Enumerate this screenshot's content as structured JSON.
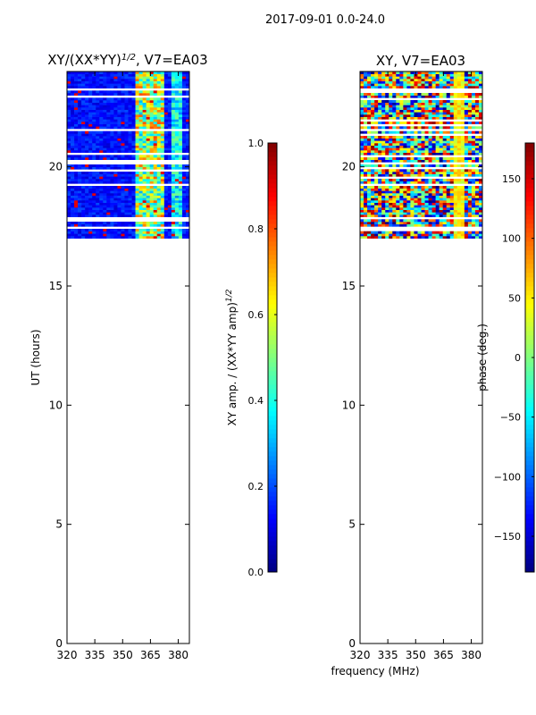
{
  "figure": {
    "suptitle": "2017-09-01 0.0-24.0",
    "shared_xlabel": "frequency (MHz)"
  },
  "chart_data": [
    {
      "type": "heatmap",
      "title": "XY/(XX*YY)",
      "title_exponent": "1/2",
      "title_suffix": ", V7=EA03",
      "xlabel": "",
      "ylabel": "UT (hours)",
      "xlim": [
        320,
        386
      ],
      "ylim": [
        0,
        24
      ],
      "xticks": [
        320,
        335,
        350,
        365,
        380
      ],
      "yticks": [
        0,
        5,
        10,
        15,
        20
      ],
      "data_time_range": [
        17.0,
        24.0
      ],
      "colormap": "jet",
      "colorbar": {
        "label": "XY amp. / (XX*YY amp)",
        "label_exponent": "1/2",
        "range": [
          0.0,
          1.0
        ],
        "ticks": [
          "0.0",
          "0.2",
          "0.4",
          "0.6",
          "0.8",
          "1.0"
        ],
        "tick_values": [
          0.0,
          0.2,
          0.4,
          0.6,
          0.8,
          1.0
        ]
      }
    },
    {
      "type": "heatmap",
      "title": "XY, V7=EA03",
      "xlabel": "frequency (MHz)",
      "ylabel": "",
      "xlim": [
        320,
        386
      ],
      "ylim": [
        0,
        24
      ],
      "xticks": [
        320,
        335,
        350,
        365,
        380
      ],
      "yticks": [
        0,
        5,
        10,
        15,
        20
      ],
      "data_time_range": [
        17.0,
        24.0
      ],
      "colormap": "jet",
      "colorbar": {
        "label": "phase (deg.)",
        "range": [
          -180,
          180
        ],
        "ticks": [
          "−150",
          "−100",
          "−50",
          "0",
          "50",
          "100",
          "150"
        ],
        "tick_values": [
          -150,
          -100,
          -50,
          0,
          50,
          100,
          150
        ]
      }
    }
  ]
}
